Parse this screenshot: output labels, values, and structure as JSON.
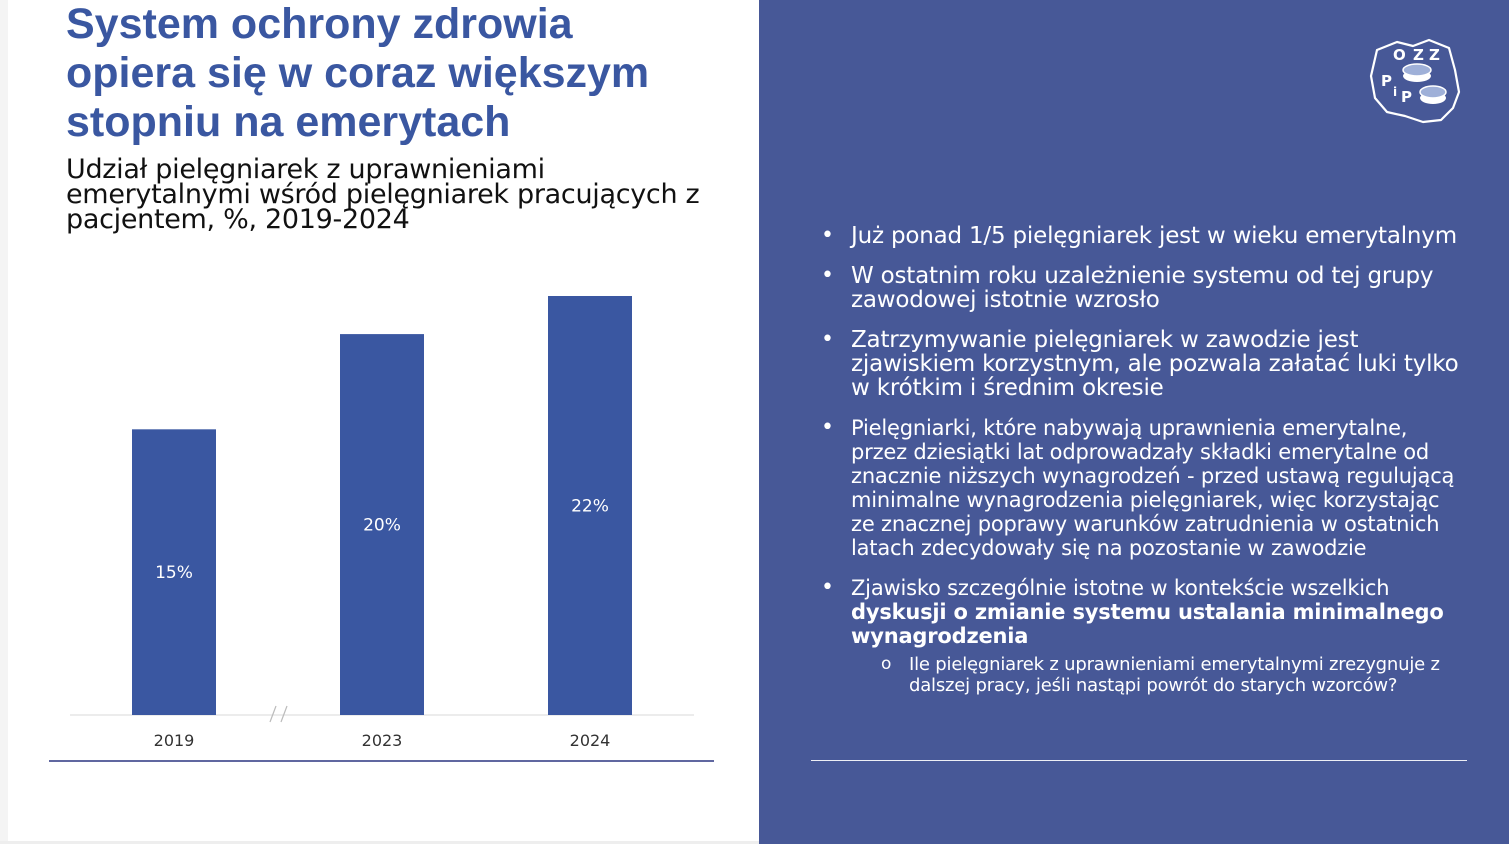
{
  "title": "System ochrony zdrowia opiera się w coraz większym stopniu na emerytach",
  "subtitle": "Udział pielęgniarek z uprawnieniami emerytalnymi wśród pielęgniarek pracujących z pacjentem, %, 2019-2024",
  "chart_data": {
    "type": "bar",
    "categories": [
      "2019",
      "2023",
      "2024"
    ],
    "values": [
      15,
      20,
      22
    ],
    "data_labels": [
      "15%",
      "20%",
      "22%"
    ],
    "ylim": [
      0,
      22
    ],
    "axis_break_between": [
      "2019",
      "2023"
    ],
    "bar_color": "#3a57a1",
    "grid": false
  },
  "logo": {
    "letters": [
      "O",
      "Z",
      "Z",
      "P",
      "i",
      "P"
    ]
  },
  "bullets": [
    {
      "text": "Już ponad 1/5 pielęgniarek jest w wieku emerytalnym"
    },
    {
      "text": "W ostatnim roku uzależnienie systemu od tej grupy zawodowej istotnie wzrosło"
    },
    {
      "text": "Zatrzymywanie pielęgniarek w zawodzie jest zjawiskiem korzystnym, ale pozwala załatać luki tylko w krótkim i średnim okresie"
    },
    {
      "text": "Pielęgniarki, które nabywają uprawnienia emerytalne, przez dziesiątki lat odprowadzały składki emerytalne od znacznie niższych wynagrodzeń - przed ustawą regulującą minimalne wynagrodzenia pielęgniarek, więc korzystając ze znacznej poprawy warunków zatrudnienia w ostatnich latach zdecydowały się na pozostanie w zawodzie"
    },
    {
      "text": "Zjawisko szczególnie istotne w kontekście wszelkich",
      "bold": "dyskusji o zmianie systemu ustalania minimalnego wynagrodzenia",
      "sub": "Ile pielęgniarek z uprawnieniami emerytalnymi zrezygnuje z dalszej pracy, jeśli nastąpi powrót do starych wzorców?"
    }
  ],
  "colors": {
    "accent": "#3a57a1",
    "panel": "#475897"
  }
}
